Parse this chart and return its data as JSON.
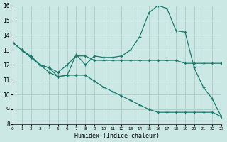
{
  "xlabel": "Humidex (Indice chaleur)",
  "xlim": [
    0,
    23
  ],
  "ylim": [
    8,
    16
  ],
  "xticks": [
    0,
    1,
    2,
    3,
    4,
    5,
    6,
    7,
    8,
    9,
    10,
    11,
    12,
    13,
    14,
    15,
    16,
    17,
    18,
    19,
    20,
    21,
    22,
    23
  ],
  "yticks": [
    8,
    9,
    10,
    11,
    12,
    13,
    14,
    15,
    16
  ],
  "bg_color": "#cce8e4",
  "grid_color": "#b0d0cc",
  "line_color": "#1a7a6e",
  "lines": [
    {
      "x": [
        0,
        1,
        2,
        3,
        4,
        5,
        6,
        7,
        8,
        9,
        10,
        11,
        12,
        13,
        14,
        15,
        16,
        17,
        18,
        19,
        20,
        21,
        22,
        23
      ],
      "y": [
        13.5,
        13.0,
        12.5,
        12.0,
        11.5,
        11.2,
        11.3,
        11.3,
        11.3,
        10.9,
        10.5,
        10.2,
        9.9,
        9.6,
        9.3,
        9.0,
        8.8,
        8.8,
        8.8,
        8.8,
        8.8,
        8.8,
        8.8,
        8.5
      ]
    },
    {
      "x": [
        0,
        1,
        2,
        3,
        4,
        5,
        6,
        7,
        8,
        9,
        10,
        11,
        12,
        13,
        14,
        15,
        16,
        17,
        18,
        19,
        20,
        21,
        22,
        23
      ],
      "y": [
        13.5,
        13.0,
        12.6,
        12.0,
        11.8,
        11.5,
        12.0,
        12.6,
        12.6,
        12.3,
        12.3,
        12.3,
        12.3,
        12.3,
        12.3,
        12.3,
        12.3,
        12.3,
        12.3,
        12.1,
        12.1,
        12.1,
        12.1,
        12.1
      ]
    },
    {
      "x": [
        0,
        1,
        2,
        3,
        4,
        5,
        6,
        7,
        8,
        9,
        10,
        11,
        12,
        13,
        14,
        15,
        16,
        17,
        18,
        19,
        20,
        21,
        22,
        23
      ],
      "y": [
        13.5,
        13.0,
        12.5,
        12.0,
        11.8,
        11.2,
        11.3,
        12.7,
        12.0,
        12.6,
        12.5,
        12.5,
        12.6,
        13.0,
        13.9,
        15.5,
        16.0,
        15.8,
        14.3,
        14.2,
        11.8,
        10.5,
        9.7,
        8.5
      ]
    }
  ]
}
